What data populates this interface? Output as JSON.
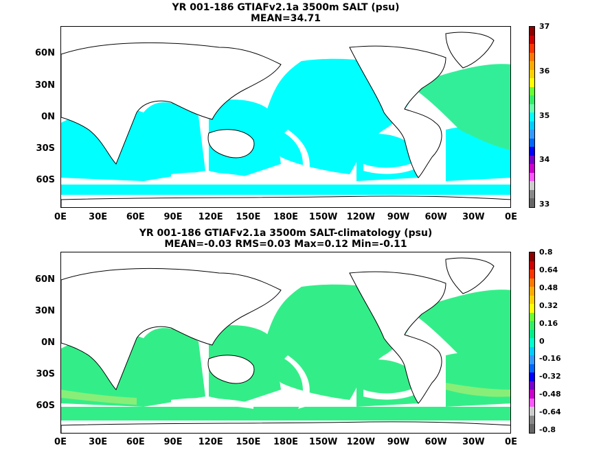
{
  "panel1": {
    "title_line1": "YR 001-186 GTIAFv2.1a 3500m SALT (psu)",
    "title_line2": "MEAN=34.71",
    "colorbar_labels": [
      "37",
      "36",
      "35",
      "34",
      "33"
    ],
    "colorbar_colors": [
      "#8b0000",
      "#cc0000",
      "#ff3300",
      "#ff7700",
      "#ffaa00",
      "#ffd000",
      "#ffff00",
      "#66ff33",
      "#33ee66",
      "#66ffaa",
      "#00ffff",
      "#00ccff",
      "#3399ff",
      "#0066ff",
      "#0000ff",
      "#7700cc",
      "#cc00cc",
      "#ff55ff",
      "#cccccc",
      "#888888",
      "#666666"
    ]
  },
  "panel2": {
    "title_line1": "YR 001-186 GTIAFv2.1a 3500m SALT-climatology (psu)",
    "title_line2": "MEAN=-0.03   RMS=0.03   Max=0.12   Min=-0.11",
    "colorbar_labels": [
      "0.8",
      "0.64",
      "0.48",
      "0.32",
      "0.16",
      "0",
      "-0.16",
      "-0.32",
      "-0.48",
      "-0.64",
      "-0.8"
    ],
    "colorbar_colors": [
      "#8b0000",
      "#cc0000",
      "#ff3300",
      "#ff7700",
      "#ffaa00",
      "#ffd000",
      "#ffff00",
      "#66ff33",
      "#33ee66",
      "#00ee88",
      "#00ffcc",
      "#00ccff",
      "#3399ff",
      "#0066ff",
      "#0000ff",
      "#7700cc",
      "#cc00cc",
      "#ff55ff",
      "#cccccc",
      "#888888",
      "#666666"
    ]
  },
  "axes": {
    "lat_labels": [
      "60N",
      "30N",
      "0N",
      "30S",
      "60S"
    ],
    "lon_labels": [
      "0E",
      "30E",
      "60E",
      "90E",
      "120E",
      "150E",
      "180E",
      "150W",
      "120W",
      "90W",
      "60W",
      "30W",
      "0E"
    ]
  },
  "colors": {
    "panel1_fill": "#00ffff",
    "panel1_atlantic": "#33ee99",
    "panel2_fill": "#33ee88",
    "panel2_light": "#88ee77",
    "land": "#ffffff",
    "coast": "#000000"
  }
}
